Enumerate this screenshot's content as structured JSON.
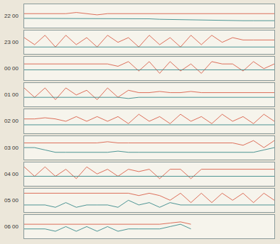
{
  "chart_data": [
    {
      "type": "line",
      "ylabel": "22 00",
      "xlim": [
        0,
        24
      ],
      "ylim": [
        0,
        10
      ],
      "tick_labels": false,
      "x": [
        0,
        1,
        2,
        3,
        4,
        5,
        6,
        7,
        8,
        9,
        10,
        11,
        12,
        13,
        14,
        15,
        16,
        17,
        18,
        19,
        20,
        21,
        22,
        23,
        24
      ],
      "series": [
        {
          "color": "#d9604a",
          "values": [
            6,
            6,
            6,
            6,
            6,
            6.5,
            6,
            5.5,
            6,
            6,
            6,
            6,
            6,
            6,
            6,
            6,
            6,
            6,
            6,
            6,
            6,
            6,
            6,
            6,
            6
          ]
        },
        {
          "color": "#3a8a8a",
          "values": [
            4,
            4,
            4,
            4,
            4,
            4,
            4,
            4,
            4,
            4,
            4,
            4,
            3.8,
            3.6,
            3.5,
            3.4,
            3.3,
            3.2,
            3.2,
            3.1,
            3,
            3,
            3,
            3,
            3
          ]
        }
      ]
    },
    {
      "type": "line",
      "ylabel": "23 00",
      "xlim": [
        0,
        24
      ],
      "ylim": [
        0,
        10
      ],
      "tick_labels": false,
      "x": [
        0,
        1,
        2,
        3,
        4,
        5,
        6,
        7,
        8,
        9,
        10,
        11,
        12,
        13,
        14,
        15,
        16,
        17,
        18,
        19,
        20,
        21,
        22,
        23,
        24
      ],
      "series": [
        {
          "color": "#d9604a",
          "values": [
            7,
            4,
            8,
            3,
            8,
            4,
            7,
            3,
            8,
            5,
            7,
            3,
            8,
            4,
            7,
            3,
            8,
            4,
            8,
            5,
            7,
            6,
            6,
            6,
            6
          ]
        },
        {
          "color": "#3a8a8a",
          "values": [
            3,
            3,
            3,
            3,
            3,
            3,
            3,
            3,
            3,
            3,
            3,
            3,
            3,
            3,
            3,
            3,
            3,
            3,
            3,
            3,
            3,
            3.2,
            3,
            3,
            3
          ]
        }
      ]
    },
    {
      "type": "line",
      "ylabel": "00 00",
      "xlim": [
        0,
        24
      ],
      "ylim": [
        0,
        10
      ],
      "tick_labels": false,
      "x": [
        0,
        1,
        2,
        3,
        4,
        5,
        6,
        7,
        8,
        9,
        10,
        11,
        12,
        13,
        14,
        15,
        16,
        17,
        18,
        19,
        20,
        21,
        22,
        23,
        24
      ],
      "series": [
        {
          "color": "#d9604a",
          "values": [
            7,
            7,
            7,
            7,
            7,
            7.2,
            7,
            7,
            7,
            6,
            8,
            4,
            8,
            3,
            8,
            4,
            7,
            3,
            8,
            7,
            7,
            4,
            8,
            5,
            7
          ]
        },
        {
          "color": "#3a8a8a",
          "values": [
            4.5,
            4.5,
            4.5,
            4.5,
            4.5,
            4.5,
            4.5,
            4.5,
            4.5,
            4.5,
            4.5,
            4.5,
            4.5,
            4.5,
            4.5,
            4.5,
            4.5,
            4.5,
            4.5,
            4.5,
            4.5,
            4.5,
            4.5,
            4.5,
            4.5
          ]
        }
      ]
    },
    {
      "type": "line",
      "ylabel": "01 00",
      "xlim": [
        0,
        24
      ],
      "ylim": [
        0,
        10
      ],
      "tick_labels": false,
      "x": [
        0,
        1,
        2,
        3,
        4,
        5,
        6,
        7,
        8,
        9,
        10,
        11,
        12,
        13,
        14,
        15,
        16,
        17,
        18,
        19,
        20,
        21,
        22,
        23,
        24
      ],
      "series": [
        {
          "color": "#d9604a",
          "values": [
            8,
            4,
            8,
            3,
            8,
            5,
            7,
            3,
            8,
            4,
            7,
            6,
            6,
            6.5,
            6,
            6,
            6.5,
            6,
            6,
            6,
            6,
            6,
            6,
            6,
            6
          ]
        },
        {
          "color": "#3a8a8a",
          "values": [
            4,
            4,
            4,
            4,
            4,
            4,
            4,
            4,
            4,
            4,
            3.5,
            4,
            4,
            4,
            4,
            4,
            4,
            4,
            4,
            4,
            4,
            4,
            4,
            4,
            4
          ]
        }
      ]
    },
    {
      "type": "line",
      "ylabel": "02 00",
      "xlim": [
        0,
        24
      ],
      "ylim": [
        0,
        10
      ],
      "tick_labels": false,
      "x": [
        0,
        1,
        2,
        3,
        4,
        5,
        6,
        7,
        8,
        9,
        10,
        11,
        12,
        13,
        14,
        15,
        16,
        17,
        18,
        19,
        20,
        21,
        22,
        23,
        24
      ],
      "series": [
        {
          "color": "#d9604a",
          "values": [
            6,
            6,
            6.5,
            6,
            5,
            7,
            5,
            7,
            5,
            7,
            4,
            8,
            5,
            7,
            4,
            8,
            5,
            7,
            4,
            8,
            5,
            7,
            4,
            8,
            5
          ]
        },
        {
          "color": "#3a8a8a",
          "values": [
            3.5,
            3.5,
            3.5,
            3.5,
            3.5,
            3.5,
            3.5,
            3.5,
            3.5,
            3.5,
            3.5,
            3.5,
            3.5,
            3.5,
            3.5,
            3.5,
            3.5,
            3.5,
            3.5,
            3.5,
            3.5,
            3.5,
            3.5,
            3.5,
            3.5
          ]
        }
      ]
    },
    {
      "type": "line",
      "ylabel": "03 00",
      "xlim": [
        0,
        24
      ],
      "ylim": [
        0,
        10
      ],
      "tick_labels": false,
      "x": [
        0,
        1,
        2,
        3,
        4,
        5,
        6,
        7,
        8,
        9,
        10,
        11,
        12,
        13,
        14,
        15,
        16,
        17,
        18,
        19,
        20,
        21,
        22,
        23,
        24
      ],
      "series": [
        {
          "color": "#d9604a",
          "values": [
            7,
            7,
            7,
            7,
            7,
            7,
            7,
            7,
            7.5,
            7,
            7,
            7,
            7,
            7,
            7,
            7,
            7,
            7,
            7,
            7,
            7,
            6,
            8,
            5,
            8
          ]
        },
        {
          "color": "#3a8a8a",
          "values": [
            5,
            5,
            4,
            3,
            3,
            3,
            3,
            3,
            3,
            3.5,
            3,
            3,
            3,
            3,
            3,
            3,
            3,
            3,
            3,
            3,
            3,
            3,
            3,
            4,
            5
          ]
        }
      ]
    },
    {
      "type": "line",
      "ylabel": "04 00",
      "xlim": [
        0,
        24
      ],
      "ylim": [
        0,
        10
      ],
      "tick_labels": false,
      "x": [
        0,
        1,
        2,
        3,
        4,
        5,
        6,
        7,
        8,
        9,
        10,
        11,
        12,
        13,
        14,
        15,
        16,
        17,
        18,
        19,
        20,
        21,
        22,
        23,
        24
      ],
      "series": [
        {
          "color": "#d9604a",
          "values": [
            8,
            4,
            8,
            4,
            7,
            3,
            8,
            5,
            7,
            4,
            7,
            6,
            7,
            3,
            7,
            7,
            3,
            7,
            7,
            7,
            7,
            7,
            7,
            7,
            7
          ]
        },
        {
          "color": "#3a8a8a",
          "values": [
            4,
            4,
            4,
            4,
            4,
            4,
            4,
            4,
            4,
            4,
            4,
            4,
            4,
            4,
            4,
            4,
            4,
            4,
            4,
            4,
            4,
            4,
            4,
            4,
            4
          ]
        }
      ]
    },
    {
      "type": "line",
      "ylabel": "05 00",
      "xlim": [
        0,
        24
      ],
      "ylim": [
        0,
        10
      ],
      "tick_labels": false,
      "x": [
        0,
        1,
        2,
        3,
        4,
        5,
        6,
        7,
        8,
        9,
        10,
        11,
        12,
        13,
        14,
        15,
        16,
        17,
        18,
        19,
        20,
        21,
        22,
        23,
        24
      ],
      "series": [
        {
          "color": "#d9604a",
          "values": [
            8,
            8,
            8,
            8,
            8,
            8,
            8,
            8,
            8,
            8,
            8,
            7,
            8,
            7,
            5,
            8,
            4,
            8,
            4,
            8,
            5,
            8,
            4,
            8,
            5
          ]
        },
        {
          "color": "#3a8a8a",
          "values": [
            3,
            3,
            3,
            2,
            4,
            2,
            3,
            3,
            3,
            2,
            5,
            3,
            4,
            2,
            4,
            3,
            3,
            3,
            3,
            3,
            3,
            3,
            3,
            3,
            3
          ]
        }
      ]
    },
    {
      "type": "line",
      "ylabel": "06 00",
      "xlim": [
        0,
        24
      ],
      "ylim": [
        0,
        10
      ],
      "tick_labels": false,
      "x": [
        0,
        1,
        2,
        3,
        4,
        5,
        6,
        7,
        8,
        9,
        10,
        11,
        12,
        13,
        14,
        15,
        16,
        17,
        18,
        19,
        20,
        21,
        22,
        23,
        24
      ],
      "series": [
        {
          "color": "#d9604a",
          "values": [
            6,
            6,
            6,
            6,
            6,
            6,
            6,
            6,
            6,
            6,
            6,
            6,
            6,
            6,
            6.5,
            7,
            6,
            null,
            null,
            null,
            null,
            null,
            null,
            null,
            null
          ]
        },
        {
          "color": "#3a8a8a",
          "values": [
            4,
            4,
            4,
            3,
            5,
            3,
            5,
            3,
            5,
            3,
            4,
            4,
            4,
            4,
            5,
            6,
            4,
            null,
            null,
            null,
            null,
            null,
            null,
            null,
            null
          ]
        }
      ]
    }
  ]
}
